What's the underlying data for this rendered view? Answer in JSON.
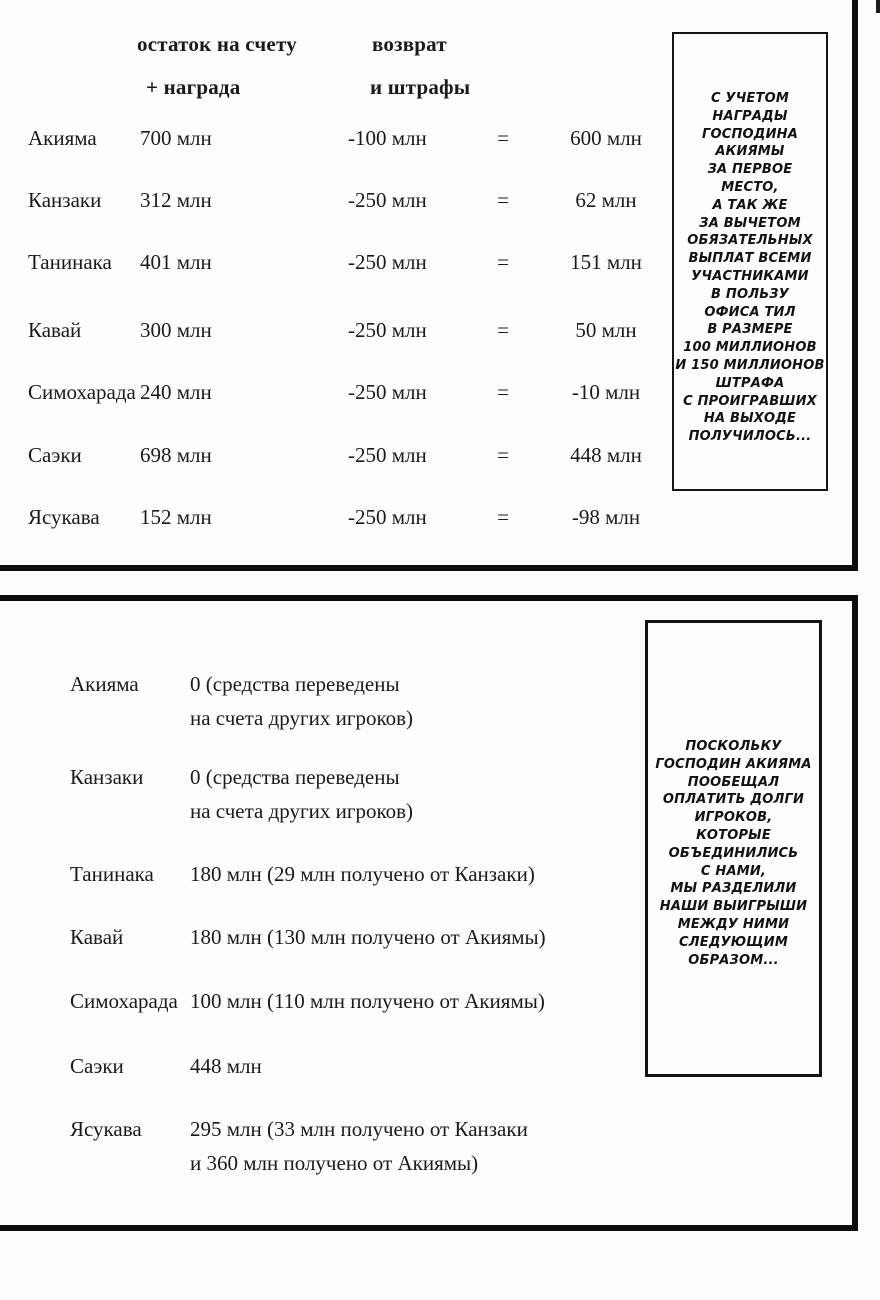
{
  "panel1": {
    "header": {
      "col1_line1": "остаток на счету",
      "col1_line2": "+ награда",
      "col2_line1": "возврат",
      "col2_line2": "и штрафы"
    },
    "equals": "=",
    "rows": [
      {
        "name": "Акияма",
        "balance": "700 млн",
        "deduction": "-100 млн",
        "result": "600 млн"
      },
      {
        "name": "Канзаки",
        "balance": "312 млн",
        "deduction": "-250 млн",
        "result": "62 млн"
      },
      {
        "name": "Танинака",
        "balance": "401 млн",
        "deduction": "-250 млн",
        "result": "151 млн"
      },
      {
        "name": "Кавай",
        "balance": "300 млн",
        "deduction": "-250 млн",
        "result": "50 млн"
      },
      {
        "name": "Симохарада",
        "balance": "240 млн",
        "deduction": "-250 млн",
        "result": "-10 млн"
      },
      {
        "name": "Саэки",
        "balance": "698 млн",
        "deduction": "-250 млн",
        "result": "448 млн"
      },
      {
        "name": "Ясукава",
        "balance": "152 млн",
        "deduction": "-250 млн",
        "result": "-98 млн"
      }
    ],
    "note_lines": [
      "С УЧЕТОМ",
      "НАГРАДЫ",
      "ГОСПОДИНА",
      "АКИЯМЫ",
      "ЗА ПЕРВОЕ",
      "МЕСТО,",
      "А ТАК ЖЕ",
      "ЗА ВЫЧЕТОМ",
      "ОБЯЗАТЕЛЬНЫХ",
      "ВЫПЛАТ ВСЕМИ",
      "УЧАСТНИКАМИ",
      "В ПОЛЬЗУ",
      "ОФИСА ТИЛ",
      "В РАЗМЕРЕ",
      "100 МИЛЛИОНОВ",
      "И 150 МИЛЛИОНОВ",
      "ШТРАФА",
      "С ПРОИГРАВШИХ",
      "НА ВЫХОДЕ",
      "ПОЛУЧИЛОСЬ..."
    ]
  },
  "panel2": {
    "rows": [
      {
        "name": "Акияма",
        "value_lines": [
          "0 (средства переведены",
          "на счета других игроков)"
        ]
      },
      {
        "name": "Канзаки",
        "value_lines": [
          "0 (средства переведены",
          "на счета других игроков)"
        ]
      },
      {
        "name": "Танинака",
        "value_lines": [
          "180 млн (29 млн получено от Канзаки)"
        ]
      },
      {
        "name": "Кавай",
        "value_lines": [
          "180 млн (130 млн получено от Акиямы)"
        ]
      },
      {
        "name": "Симохарада",
        "value_lines": [
          "100 млн (110 млн получено от Акиямы)"
        ]
      },
      {
        "name": "Саэки",
        "value_lines": [
          "448 млн"
        ]
      },
      {
        "name": "Ясукава",
        "value_lines": [
          "295 млн (33 млн получено от Канзаки",
          "и 360 млн получено от Акиямы)"
        ]
      }
    ],
    "note_lines": [
      "ПОСКОЛЬКУ",
      "ГОСПОДИН АКИЯМА",
      "ПООБЕЩАЛ",
      "ОПЛАТИТЬ ДОЛГИ",
      "ИГРОКОВ,",
      "КОТОРЫЕ",
      "ОБЪЕДИНИЛИСЬ",
      "С НАМИ,",
      "МЫ РАЗДЕЛИЛИ",
      "НАШИ ВЫИГРЫШИ",
      "МЕЖДУ НИМИ",
      "СЛЕДУЮЩИМ",
      "ОБРАЗОМ..."
    ]
  }
}
